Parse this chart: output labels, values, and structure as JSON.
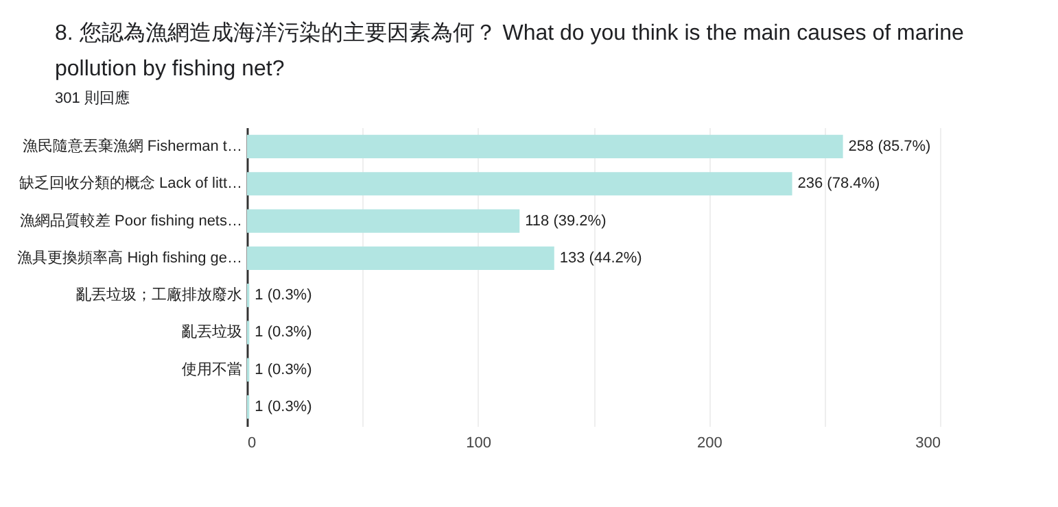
{
  "chart_data": {
    "type": "bar",
    "orientation": "horizontal",
    "title": "8. 您認為漁網造成海洋污染的主要因素為何？ What do you think is the main causes of marine pollution by fishing net?",
    "subtitle": "301 則回應",
    "categories": [
      "漁民隨意丟棄漁網 Fisherman t…",
      "缺乏回收分類的概念 Lack of litt…",
      "漁網品質較差 Poor fishing nets…",
      "漁具更換頻率高 High fishing ge…",
      "亂丟垃圾；工廠排放廢水",
      "亂丟垃圾",
      "使用不當",
      null
    ],
    "values": [
      258,
      236,
      118,
      133,
      1,
      1,
      1,
      1
    ],
    "value_labels": [
      "258 (85.7%)",
      "236 (78.4%)",
      "118 (39.2%)",
      "133 (44.2%)",
      "1 (0.3%)",
      "1 (0.3%)",
      "1 (0.3%)",
      "1 (0.3%)"
    ],
    "color": "#b2e5e2",
    "xlim": [
      0,
      300
    ],
    "xticks": [
      0,
      {
        "value": 50,
        "label": null
      },
      100,
      {
        "value": 150,
        "label": null
      },
      200,
      {
        "value": 250,
        "label": null
      },
      300
    ],
    "grid": "x"
  }
}
